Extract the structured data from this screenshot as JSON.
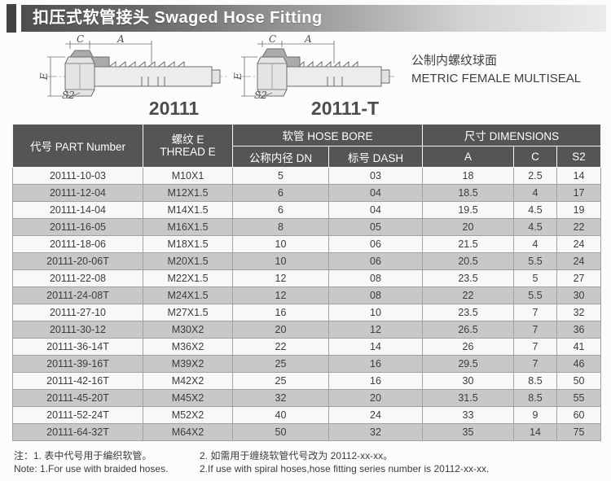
{
  "header": {
    "title": "扣压式软管接头  Swaged Hose Fitting"
  },
  "product_type": {
    "zh": "公制内螺纹球面",
    "en": "METRIC FEMALE MULTISEAL"
  },
  "diagrams": [
    {
      "label": "20111",
      "dims": {
        "c": "C",
        "a": "A",
        "e": "E",
        "s2": "S2"
      }
    },
    {
      "label": "20111-T",
      "dims": {
        "c": "C",
        "a": "A",
        "e": "E",
        "s2": "S2"
      }
    }
  ],
  "table": {
    "headers": {
      "part_number": "代号 PART Number",
      "thread_zh": "螺纹 E",
      "thread_en": "THREAD E",
      "hose_bore": "软管 HOSE BORE",
      "dn": "公称内径 DN",
      "dash": "标号 DASH",
      "dimensions": "尺寸 DIMENSIONS",
      "col_a": "A",
      "col_c": "C",
      "col_s2": "S2"
    },
    "rows": [
      [
        "20111-10-03",
        "M10X1",
        "5",
        "03",
        "18",
        "2.5",
        "14"
      ],
      [
        "20111-12-04",
        "M12X1.5",
        "6",
        "04",
        "18.5",
        "4",
        "17"
      ],
      [
        "20111-14-04",
        "M14X1.5",
        "6",
        "04",
        "19.5",
        "4.5",
        "19"
      ],
      [
        "20111-16-05",
        "M16X1.5",
        "8",
        "05",
        "20",
        "4.5",
        "22"
      ],
      [
        "20111-18-06",
        "M18X1.5",
        "10",
        "06",
        "21.5",
        "4",
        "24"
      ],
      [
        "20111-20-06T",
        "M20X1.5",
        "10",
        "06",
        "20.5",
        "5.5",
        "24"
      ],
      [
        "20111-22-08",
        "M22X1.5",
        "12",
        "08",
        "23.5",
        "5",
        "27"
      ],
      [
        "20111-24-08T",
        "M24X1.5",
        "12",
        "08",
        "22",
        "5.5",
        "30"
      ],
      [
        "20111-27-10",
        "M27X1.5",
        "16",
        "10",
        "23.5",
        "7",
        "32"
      ],
      [
        "20111-30-12",
        "M30X2",
        "20",
        "12",
        "26.5",
        "7",
        "36"
      ],
      [
        "20111-36-14T",
        "M36X2",
        "22",
        "14",
        "26",
        "7",
        "41"
      ],
      [
        "20111-39-16T",
        "M39X2",
        "25",
        "16",
        "29.5",
        "7",
        "46"
      ],
      [
        "20111-42-16T",
        "M42X2",
        "25",
        "16",
        "30",
        "8.5",
        "50"
      ],
      [
        "20111-45-20T",
        "M45X2",
        "32",
        "20",
        "31.5",
        "8.5",
        "55"
      ],
      [
        "20111-52-24T",
        "M52X2",
        "40",
        "24",
        "33",
        "9",
        "60"
      ],
      [
        "20111-64-32T",
        "M64X2",
        "50",
        "32",
        "35",
        "14",
        "75"
      ]
    ]
  },
  "notes": {
    "zh_1": "注：1. 表中代号用于编织软管。",
    "zh_2": "2. 如需用于缠绕软管代号改为 20112-xx-xx。",
    "en_1": "Note: 1.For use with braided hoses.",
    "en_2": "2.If use with spiral hoses,hose fitting series number is 20112-xx-xx."
  },
  "colors": {
    "table_header_bg": "#545557",
    "row_gray": "#c8c8c8",
    "row_light": "#f8f8f7",
    "title_bar_dark": "#4d4e50",
    "accent_block": "#434345"
  }
}
